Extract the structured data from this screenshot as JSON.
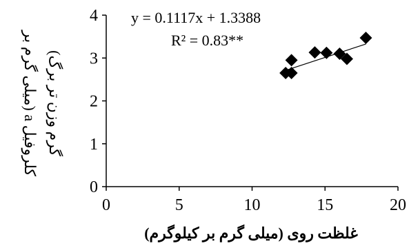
{
  "chart_data": {
    "type": "scatter",
    "xlabel": "غلظت روی (میلی گرم بر کیلوگرم)",
    "ylabel_line1": "کلروفیل a (میلی گرم بر",
    "ylabel_line2": "گرم وزن تر برگ)",
    "equation": "y = 0.1117x + 1.3388",
    "r_squared": "R² = 0.83**",
    "xlim": [
      0,
      20
    ],
    "ylim": [
      0,
      4
    ],
    "xticks": [
      0,
      5,
      10,
      15,
      20
    ],
    "yticks": [
      0,
      1,
      2,
      3,
      4
    ],
    "grid": false,
    "trendline": {
      "slope": 0.1117,
      "intercept": 1.3388,
      "x_start": 12.3,
      "x_end": 17.8
    },
    "marker": "diamond",
    "marker_color": "#000000",
    "series": [
      {
        "x": [
          12.3,
          12.7,
          12.7,
          14.3,
          15.1,
          16.0,
          16.5,
          17.8
        ],
        "y": [
          2.65,
          2.95,
          2.65,
          3.13,
          3.12,
          3.1,
          2.98,
          3.47
        ]
      }
    ]
  }
}
